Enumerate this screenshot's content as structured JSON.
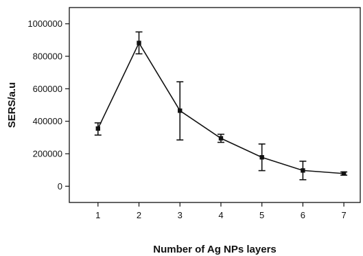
{
  "chart_data": {
    "type": "line",
    "title": "",
    "xlabel": "Number of Ag NPs layers",
    "ylabel": "SERS/a.u",
    "x": [
      1,
      2,
      3,
      4,
      5,
      6,
      7
    ],
    "series": [
      {
        "values": [
          355000,
          882000,
          465000,
          295000,
          178000,
          97000,
          78000
        ],
        "err_low": [
          40000,
          67000,
          180000,
          25000,
          82000,
          57000,
          10000
        ],
        "err_high": [
          35000,
          68000,
          178000,
          25000,
          82000,
          57000,
          10000
        ],
        "color": "#111111",
        "marker": "square"
      }
    ],
    "xlim": [
      0.3,
      7.4
    ],
    "ylim": [
      -100000,
      1100000
    ],
    "xticks": [
      "1",
      "2",
      "3",
      "4",
      "5",
      "6",
      "7"
    ],
    "yticks": [
      "0",
      "200000",
      "400000",
      "600000",
      "800000",
      "1000000"
    ],
    "grid": false,
    "legend": "none"
  }
}
